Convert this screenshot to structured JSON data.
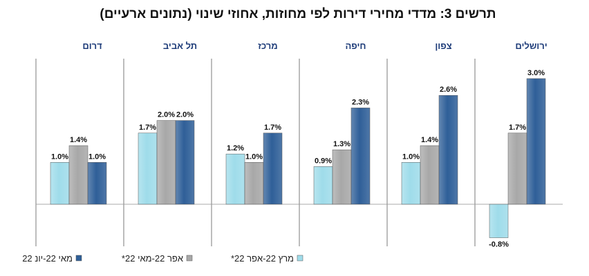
{
  "chart_data": {
    "type": "bar",
    "title": "תרשים 3: מדדי מחירי דירות לפי מחוזות, אחוזי שינוי (נתונים ארעיים)",
    "categories": [
      "ירושלים",
      "צפון",
      "חיפה",
      "מרכז",
      "תל אביב",
      "דרום"
    ],
    "series": [
      {
        "name": "מרץ 22-אפר 22*",
        "color": "#9fdcea",
        "values": [
          -0.8,
          1.0,
          0.9,
          1.2,
          1.7,
          1.0
        ]
      },
      {
        "name": "אפר 22-מאי 22*",
        "color": "#a8a8a8",
        "values": [
          1.7,
          1.4,
          1.3,
          1.0,
          2.0,
          1.4
        ]
      },
      {
        "name": "מאי 22-יונ 22",
        "color": "#2f5f98",
        "values": [
          3.0,
          2.6,
          2.3,
          1.7,
          2.0,
          1.0
        ]
      }
    ],
    "value_format": "percent",
    "ylim": [
      -1.0,
      3.5
    ],
    "grid": false,
    "legend": "bottom",
    "category_label_color": "#1f3d7a"
  }
}
